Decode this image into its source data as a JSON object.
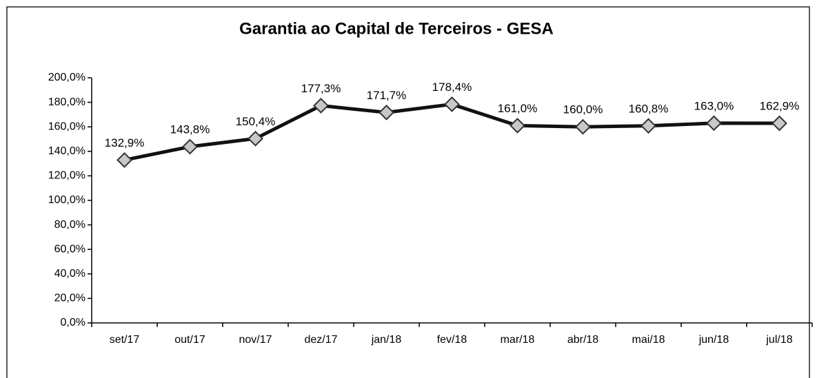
{
  "chart_data": {
    "type": "line",
    "title": "Garantia ao Capital de Terceiros - GESA",
    "categories": [
      "set/17",
      "out/17",
      "nov/17",
      "dez/17",
      "jan/18",
      "fev/18",
      "mar/18",
      "abr/18",
      "mai/18",
      "jun/18",
      "jul/18"
    ],
    "series": [
      {
        "name": "Garantia ao Capital de Terceiros",
        "color": "#111111",
        "values": [
          132.9,
          143.8,
          150.4,
          177.3,
          171.7,
          178.4,
          161.0,
          160.0,
          160.8,
          163.0,
          162.9
        ],
        "value_labels": [
          "132,9%",
          "143,8%",
          "150,4%",
          "177,3%",
          "171,7%",
          "178,4%",
          "161,0%",
          "160,0%",
          "160,8%",
          "163,0%",
          "162,9%"
        ]
      }
    ],
    "ylim": [
      0,
      200
    ],
    "yticks": [
      {
        "value": 0,
        "label": "0,0%"
      },
      {
        "value": 20,
        "label": "20,0%"
      },
      {
        "value": 40,
        "label": "40,0%"
      },
      {
        "value": 60,
        "label": "60,0%"
      },
      {
        "value": 80,
        "label": "80,0%"
      },
      {
        "value": 100,
        "label": "100,0%"
      },
      {
        "value": 120,
        "label": "120,0%"
      },
      {
        "value": 140,
        "label": "140,0%"
      },
      {
        "value": 160,
        "label": "160,0%"
      },
      {
        "value": 180,
        "label": "180,0%"
      },
      {
        "value": 200,
        "label": "200,0%"
      }
    ],
    "grid": false,
    "marker_fill": "#c8c8c8"
  }
}
